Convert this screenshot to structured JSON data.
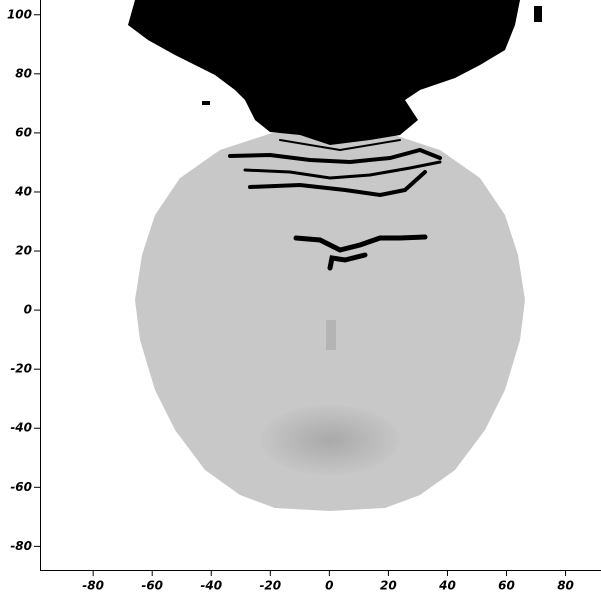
{
  "chart_data": {
    "type": "image",
    "xlim": [
      -98,
      92
    ],
    "ylim": [
      -88,
      105
    ],
    "xticks": [
      -80,
      -60,
      -40,
      -20,
      0,
      20,
      40,
      60,
      80
    ],
    "yticks": [
      -80,
      -60,
      -40,
      -20,
      0,
      20,
      40,
      60,
      80,
      100
    ]
  }
}
